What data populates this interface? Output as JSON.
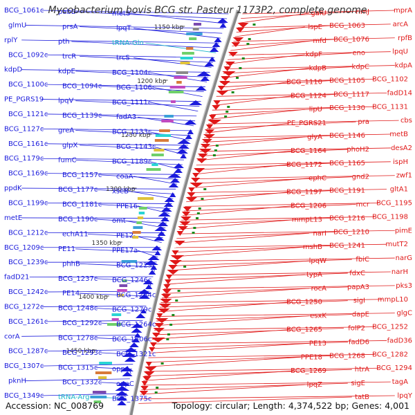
{
  "title": "Mycobacterium bovis BCG str. Pasteur 1173P2, complete genome",
  "footer": {
    "accession": "Accession: NC_008769",
    "topology": "Topology: circular; Length: 4,374,522 bp; Genes: 4,001"
  },
  "colors": {
    "forward": "#1a1adc",
    "reverse": "#e01818",
    "rna": "#1ab4c8",
    "backbone": "#888888",
    "tick_mark": "#1a8a1a"
  },
  "kbp_ticks": [
    "1150 kbp",
    "1200 kbp",
    "1250 kbp",
    "1300 kbp",
    "1350 kbp",
    "1400 kbp",
    "1450 kbp"
  ],
  "left_labels": [
    "BCG_1061c",
    "pabB",
    "metS",
    "glmU",
    "prsA",
    "lpqT",
    "rplY",
    "pth",
    "tRNA-Gln",
    "BCG_1092c",
    "trcR",
    "trcS",
    "kdpD",
    "kdpE",
    "BCG_1104c",
    "BCG_1100c",
    "BCG_1094c",
    "BCG_1106c",
    "PE_PGRS19",
    "lpqV",
    "BCG_1111c",
    "BCG_1121c",
    "BCG_1139c",
    "fadA3",
    "BCG_1127c",
    "greA",
    "BCG_1133c",
    "BCG_1161c",
    "glpX",
    "BCG_1143c",
    "BCG_1179c",
    "fumC",
    "BCG_1189c",
    "BCG_1169c",
    "BCG_1157c",
    "coaA",
    "ppdK",
    "BCG_1177c",
    "xseB",
    "BCG_1199c",
    "BCG_1181c",
    "PPE16",
    "metE",
    "BCG_1190c",
    "omt",
    "BCG_1212c",
    "echA11",
    "PE12",
    "BCG_1209c",
    "PE11",
    "PPE17a",
    "BCG_1239c",
    "phhB",
    "BCG_1229c",
    "fadD21",
    "BCG_1237c",
    "BCG_1246c",
    "BCG_1242c",
    "PE14",
    "BCG_1254c",
    "BCG_1272c",
    "BCG_1248c",
    "BCG_1279c",
    "BCG_1261c",
    "BCG_1292c",
    "BCG_1264c",
    "corA",
    "BCG_1278c",
    "BCG_1306c",
    "BCG_1287c",
    "BCG_1293c",
    "BCG_1321c",
    "BCG_1307c",
    "BCG_1315c",
    "oppA",
    "pknH",
    "BCG_1332c",
    "oppC",
    "BCG_1349c",
    "tRNA-Arg",
    "BCG_1375c"
  ],
  "right_labels": [
    "mprA",
    "rimJ",
    "galU",
    "arcA",
    "BCG_1063",
    "lspE",
    "rpfB",
    "BCG_1076",
    "mfd",
    "lpqU",
    "eno",
    "kdpF",
    "kdpA",
    "kdpC",
    "kdpB",
    "BCG_1102",
    "BCG_1105",
    "BCG_1110",
    "fadD14",
    "BCG_1117",
    "BCG_1124",
    "BCG_1131",
    "BCG_1130",
    "lipU",
    "cbs",
    "pra",
    "PE_PGRS21",
    "metB",
    "BCG_1146",
    "glyA",
    "desA2",
    "phoH2",
    "BCG_1164",
    "ispH",
    "BCG_1165",
    "BCG_1172",
    "zwf1",
    "gnd2",
    "ephC",
    "gltA1",
    "BCG_1191",
    "BCG_1197",
    "BCG_1195",
    "mcr",
    "BCG_1206",
    "BCG_1198",
    "BCG_1216",
    "mmpL13",
    "pimE",
    "BCG_1210",
    "narI",
    "mutT2",
    "BCG_1241",
    "mshB",
    "narG",
    "fbiC",
    "lpqW",
    "narH",
    "fdxC",
    "typA",
    "pks3",
    "papA3",
    "rocA",
    "mmpL10",
    "sigI",
    "BCG_1250",
    "glgC",
    "dapE",
    "esxK",
    "BCG_1252",
    "folP2",
    "BCG_1265",
    "fadD36",
    "fadD6",
    "PE13",
    "BCG_1282",
    "BCG_1268",
    "PPE18",
    "BCG_1294",
    "htrA",
    "BCG_1269",
    "tagA",
    "sigE",
    "lpqZ",
    "lpqY",
    "tatB"
  ],
  "watermark": "Create.sh"
}
